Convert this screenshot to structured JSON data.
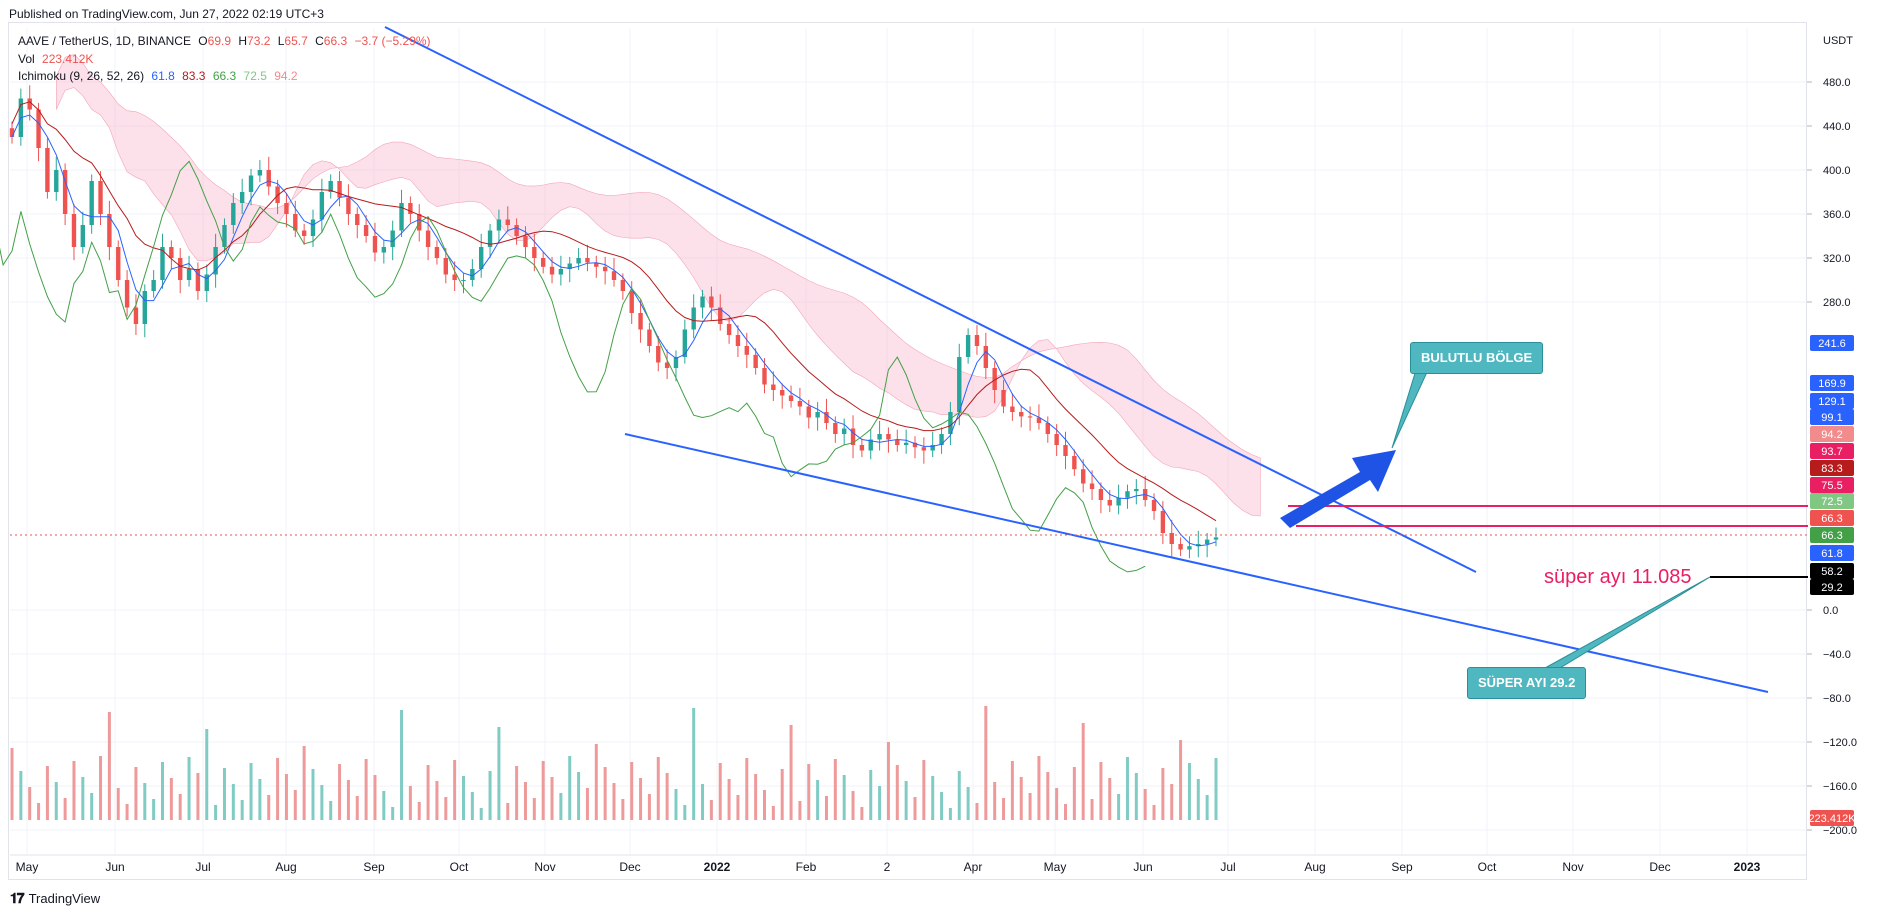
{
  "header": {
    "published": "Published on TradingView.com, Jun 27, 2022 02:19 UTC+3"
  },
  "legend": {
    "symbol": "AAVE / TetherUS, 1D, BINANCE",
    "o_label": "O",
    "o": "69.9",
    "h_label": "H",
    "h": "73.2",
    "l_label": "L",
    "l": "65.7",
    "c_label": "C",
    "c": "66.3",
    "chg": "−3.7 (−5.29%)",
    "vol_label": "Vol",
    "vol": "223.412K",
    "ichimoku_label": "Ichimoku (9, 26, 52, 26)",
    "ichimoku_values": [
      "61.8",
      "83.3",
      "66.3",
      "72.5",
      "94.2"
    ]
  },
  "footer": {
    "brand": "TradingView"
  },
  "annotations": {
    "bulutlu": "BULUTLU BÖLGE",
    "super_ayi_box": "SÜPER AYI 29.2",
    "super_ayi_text": "süper ayı 11.085"
  },
  "colors": {
    "up": "#26a69a",
    "down": "#ef5350",
    "tenkan": "#2962ff",
    "kijun": "#b71c1c",
    "chikou": "#43a047",
    "trend": "#2962ff",
    "cloud_bull": "#a5d6a7",
    "cloud_bear": "#f8bbd0",
    "pink_line": "#e91e63"
  },
  "chart_data": {
    "type": "candlestick",
    "symbol": "AAVE / TetherUS",
    "interval": "1D",
    "exchange": "BINANCE",
    "price_axis": {
      "currency": "USDT",
      "ticks": [
        "480.0",
        "440.0",
        "400.0",
        "360.0",
        "320.0",
        "280.0",
        "0.0",
        "−40.0",
        "−80.0",
        "−120.0",
        "−160.0",
        "−200.0"
      ]
    },
    "time_axis": {
      "ticks": [
        "May",
        "Jun",
        "Jul",
        "Aug",
        "Sep",
        "Oct",
        "Nov",
        "Dec",
        "2022",
        "Feb",
        "2",
        "Apr",
        "May",
        "Jun",
        "Jul",
        "Aug",
        "Sep",
        "Oct",
        "Nov",
        "Dec",
        "2023"
      ]
    },
    "price_labels": [
      {
        "text": "241.6",
        "color": "#2962ff"
      },
      {
        "text": "169.9",
        "color": "#2962ff"
      },
      {
        "text": "129.1",
        "color": "#2962ff"
      },
      {
        "text": "99.1",
        "color": "#2962ff"
      },
      {
        "text": "94.2",
        "color": "#f28b8b"
      },
      {
        "text": "93.7",
        "color": "#e91e63"
      },
      {
        "text": "83.3",
        "color": "#b71c1c"
      },
      {
        "text": "75.5",
        "color": "#e91e63"
      },
      {
        "text": "72.5",
        "color": "#81c784"
      },
      {
        "text": "66.3",
        "color": "#ef5350"
      },
      {
        "text": "66.3",
        "color": "#43a047"
      },
      {
        "text": "61.8",
        "color": "#2962ff"
      },
      {
        "text": "58.2",
        "color": "#000000"
      },
      {
        "text": "29.2",
        "color": "#000000"
      },
      {
        "text": "223.412K",
        "color": "#ef5350"
      }
    ],
    "last": {
      "open": 69.9,
      "high": 73.2,
      "low": 65.7,
      "close": 66.3,
      "change": -3.7,
      "change_pct": -5.29
    },
    "volume_last": "223.412K",
    "ichimoku": {
      "params": [
        9,
        26,
        52,
        26
      ],
      "conversion": 61.8,
      "base": 83.3,
      "lagging": 66.3,
      "lead_a": 72.5,
      "lead_b": 94.2
    },
    "close_series": [
      430,
      465,
      455,
      420,
      380,
      400,
      360,
      330,
      350,
      390,
      360,
      330,
      300,
      275,
      260,
      290,
      300,
      330,
      320,
      300,
      310,
      290,
      305,
      330,
      350,
      370,
      380,
      395,
      400,
      385,
      370,
      360,
      345,
      340,
      355,
      380,
      390,
      375,
      360,
      350,
      340,
      325,
      330,
      345,
      370,
      360,
      345,
      330,
      320,
      305,
      300,
      300,
      310,
      330,
      345,
      355,
      350,
      340,
      330,
      320,
      312,
      305,
      310,
      315,
      320,
      316,
      312,
      308,
      300,
      290,
      270,
      255,
      240,
      225,
      220,
      230,
      255,
      275,
      285,
      275,
      260,
      250,
      240,
      232,
      220,
      205,
      200,
      195,
      190,
      185,
      175,
      180,
      170,
      160,
      165,
      150,
      145,
      155,
      160,
      155,
      150,
      152,
      148,
      145,
      150,
      160,
      180,
      230,
      250,
      240,
      220,
      200,
      185,
      180,
      176,
      175,
      170,
      160,
      150,
      140,
      128,
      115,
      110,
      100,
      95,
      102,
      108,
      110,
      100,
      90,
      70,
      60,
      55,
      58,
      60,
      64,
      66
    ]
  }
}
